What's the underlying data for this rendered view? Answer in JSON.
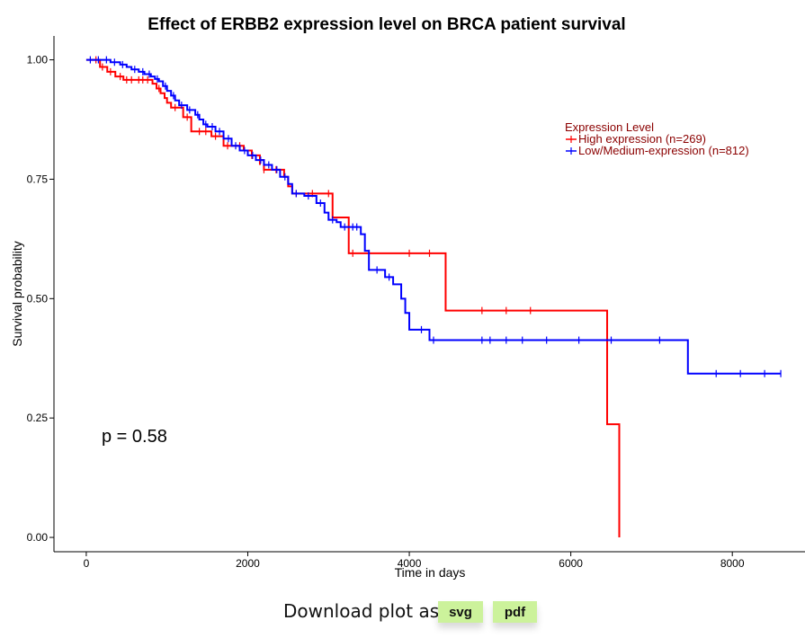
{
  "chart_data": {
    "type": "line",
    "title": "Effect of ERBB2 expression level on BRCA patient survival",
    "xlabel": "Time in days",
    "ylabel": "Survival probability",
    "xlim": [
      -400,
      8900
    ],
    "ylim": [
      -0.03,
      1.05
    ],
    "xticks": [
      0,
      2000,
      4000,
      6000,
      8000
    ],
    "yticks": [
      0.0,
      0.25,
      0.5,
      0.75,
      1.0
    ],
    "ytick_labels": [
      "0.00",
      "0.25",
      "0.50",
      "0.75",
      "1.00"
    ],
    "grid": false,
    "legend": {
      "title": "Expression Level",
      "placement": "right",
      "color": "#8b0000"
    },
    "annotation": "p = 0.58",
    "series": [
      {
        "name": "High expression (n=269)",
        "color": "#ff0000",
        "steps": [
          [
            0,
            1.0
          ],
          [
            170,
            0.985
          ],
          [
            260,
            0.975
          ],
          [
            360,
            0.965
          ],
          [
            460,
            0.958
          ],
          [
            820,
            0.95
          ],
          [
            870,
            0.94
          ],
          [
            920,
            0.93
          ],
          [
            970,
            0.92
          ],
          [
            1000,
            0.91
          ],
          [
            1050,
            0.9
          ],
          [
            1200,
            0.88
          ],
          [
            1300,
            0.85
          ],
          [
            1550,
            0.84
          ],
          [
            1700,
            0.82
          ],
          [
            1950,
            0.81
          ],
          [
            2050,
            0.8
          ],
          [
            2150,
            0.78
          ],
          [
            2150,
            0.79
          ],
          [
            2200,
            0.77
          ],
          [
            2400,
            0.77
          ],
          [
            2450,
            0.755
          ],
          [
            2500,
            0.735
          ],
          [
            2550,
            0.72
          ],
          [
            3050,
            0.67
          ],
          [
            3250,
            0.595
          ],
          [
            4450,
            0.475
          ],
          [
            6450,
            0.237
          ],
          [
            6600,
            0.0
          ]
        ],
        "censor_x": [
          120,
          200,
          300,
          420,
          500,
          560,
          650,
          700,
          760,
          900,
          1100,
          1250,
          1400,
          1480,
          1600,
          1750,
          1900,
          2050,
          2200,
          2350,
          2600,
          2800,
          3000,
          3300,
          3500,
          4000,
          4250,
          4900,
          5200,
          5500
        ]
      },
      {
        "name": "Low/Medium-expression (n=812)",
        "color": "#0000ff",
        "steps": [
          [
            0,
            1.0
          ],
          [
            300,
            0.995
          ],
          [
            420,
            0.99
          ],
          [
            500,
            0.985
          ],
          [
            560,
            0.98
          ],
          [
            650,
            0.975
          ],
          [
            720,
            0.97
          ],
          [
            800,
            0.965
          ],
          [
            850,
            0.96
          ],
          [
            900,
            0.955
          ],
          [
            950,
            0.945
          ],
          [
            1000,
            0.935
          ],
          [
            1050,
            0.925
          ],
          [
            1100,
            0.915
          ],
          [
            1150,
            0.905
          ],
          [
            1250,
            0.895
          ],
          [
            1350,
            0.885
          ],
          [
            1400,
            0.875
          ],
          [
            1450,
            0.865
          ],
          [
            1500,
            0.86
          ],
          [
            1600,
            0.85
          ],
          [
            1700,
            0.835
          ],
          [
            1800,
            0.82
          ],
          [
            1900,
            0.81
          ],
          [
            2000,
            0.8
          ],
          [
            2100,
            0.79
          ],
          [
            2200,
            0.78
          ],
          [
            2300,
            0.77
          ],
          [
            2400,
            0.755
          ],
          [
            2500,
            0.74
          ],
          [
            2550,
            0.72
          ],
          [
            2700,
            0.715
          ],
          [
            2850,
            0.7
          ],
          [
            2950,
            0.68
          ],
          [
            3000,
            0.665
          ],
          [
            3100,
            0.66
          ],
          [
            3150,
            0.65
          ],
          [
            3400,
            0.635
          ],
          [
            3450,
            0.6
          ],
          [
            3500,
            0.56
          ],
          [
            3700,
            0.545
          ],
          [
            3800,
            0.53
          ],
          [
            3900,
            0.5
          ],
          [
            3950,
            0.47
          ],
          [
            4000,
            0.435
          ],
          [
            4250,
            0.413
          ],
          [
            7450,
            0.343
          ]
        ],
        "censor_x": [
          50,
          150,
          250,
          350,
          450,
          600,
          700,
          780,
          880,
          980,
          1080,
          1180,
          1280,
          1380,
          1480,
          1560,
          1650,
          1760,
          1850,
          1960,
          2060,
          2160,
          2260,
          2360,
          2460,
          2600,
          2750,
          2900,
          3050,
          3200,
          3300,
          3350,
          3600,
          3750,
          4150,
          4300,
          4900,
          5000,
          5200,
          5400,
          5700,
          6100,
          6500,
          7100,
          7800,
          8100,
          8400,
          8600
        ]
      }
    ]
  },
  "download": {
    "label": "Download plot as",
    "svg_label": "svg",
    "pdf_label": "pdf"
  }
}
